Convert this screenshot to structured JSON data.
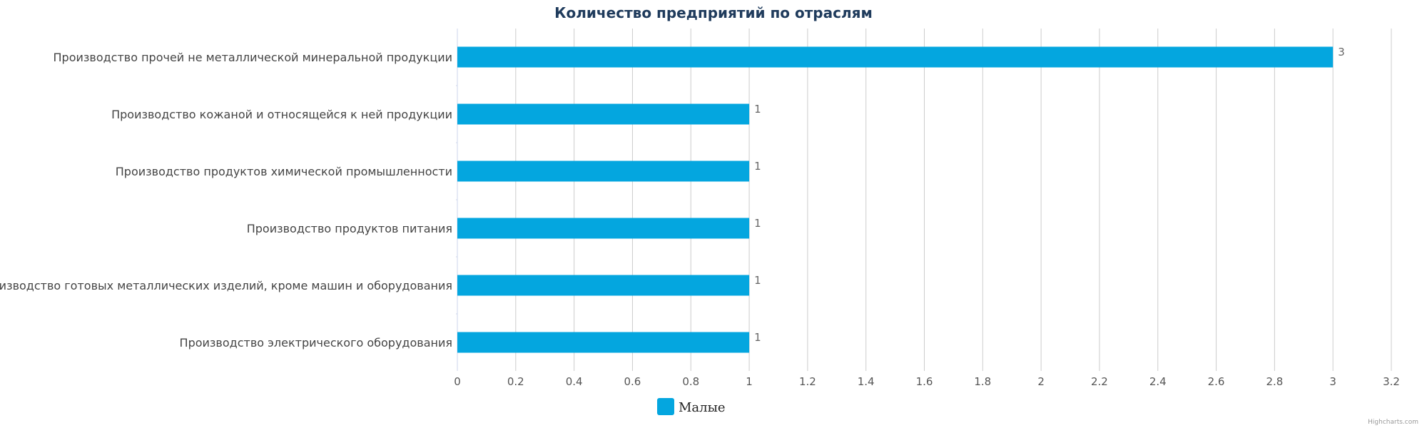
{
  "chart_data": {
    "type": "bar",
    "orientation": "horizontal",
    "title": "Количество предприятий по отраслям",
    "categories": [
      "Производство прочей не металлической минеральной продукции",
      "Производство кожаной и относящейся к ней продукции",
      "Производство продуктов химической промышленности",
      "Производство продуктов питания",
      "Производство готовых металлических изделий, кроме машин и оборудования",
      "Производство электрического оборудования"
    ],
    "series": [
      {
        "name": "Малые",
        "values": [
          3,
          1,
          1,
          1,
          1,
          1
        ],
        "color": "#04a6df"
      }
    ],
    "xlim": [
      0,
      3.2
    ],
    "ticks": [
      "0",
      "0.2",
      "0.4",
      "0.6",
      "0.8",
      "1",
      "1.2",
      "1.4",
      "1.6",
      "1.8",
      "2",
      "2.2",
      "2.4",
      "2.6",
      "2.8",
      "3",
      "3.2"
    ],
    "grid": true,
    "legend_position": "bottom-center",
    "data_labels": true
  },
  "credits": "Highcharts.com",
  "colors": {
    "grid": "#cccccc",
    "title": "#1f3b5c",
    "bar": "#04a6df"
  }
}
